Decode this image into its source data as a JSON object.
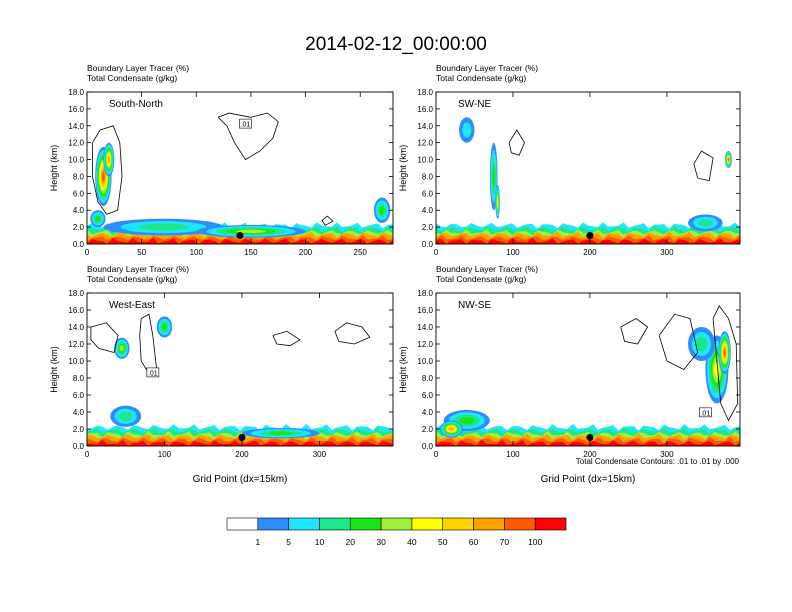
{
  "title": "2014-02-12_00:00:00",
  "colors": {
    "fill_levels": [
      "#ffffff",
      "#2e8cff",
      "#1ee6ff",
      "#1ee68c",
      "#19e619",
      "#a0f03c",
      "#ffff00",
      "#ffd200",
      "#ffa000",
      "#ff5a00",
      "#ff0000"
    ],
    "contour": "#000000",
    "marker": "#000000"
  },
  "colorbar": {
    "labels": [
      "1",
      "5",
      "10",
      "20",
      "30",
      "40",
      "50",
      "60",
      "70",
      "100"
    ]
  },
  "footnote": "Total Condensate Contours: .01 to .01 by .000",
  "chart_data": [
    {
      "type": "heatmap",
      "title": "South-North",
      "label1": "Boundary Layer Tracer   (%)",
      "label2": "Total Condensate   (g/kg)",
      "ylabel": "Height (km)",
      "xlabel": "",
      "xlim": [
        0,
        280
      ],
      "ylim": [
        0,
        18
      ],
      "xticks": [
        "0",
        "50",
        "100",
        "150",
        "200",
        "250"
      ],
      "xtick_values": [
        0,
        50,
        100,
        150,
        200,
        250
      ],
      "yticks": [
        "0.0",
        "2.0",
        "4.0",
        "6.0",
        "8.0",
        "10.0",
        "12.0",
        "14.0",
        "16.0",
        "18.0"
      ],
      "contour_label": ".01",
      "contour_label_pos": [
        145,
        14.2
      ],
      "marker": [
        140,
        1.0
      ],
      "blobs": [
        {
          "x": 15,
          "y": 8,
          "w": 15,
          "h": 7,
          "v": 70
        },
        {
          "x": 20,
          "y": 10,
          "w": 10,
          "h": 4,
          "v": 60
        },
        {
          "x": 70,
          "y": 2,
          "w": 110,
          "h": 2,
          "v": 10
        },
        {
          "x": 150,
          "y": 1.5,
          "w": 100,
          "h": 1.5,
          "v": 30
        },
        {
          "x": 270,
          "y": 4,
          "w": 15,
          "h": 3,
          "v": 20
        },
        {
          "x": 10,
          "y": 3,
          "w": 14,
          "h": 2,
          "v": 20
        }
      ],
      "contours": [
        [
          [
            120,
            15
          ],
          [
            130,
            15.5
          ],
          [
            150,
            15
          ],
          [
            165,
            15.5
          ],
          [
            175,
            14.5
          ],
          [
            170,
            12.5
          ],
          [
            158,
            11
          ],
          [
            145,
            10
          ],
          [
            135,
            12
          ],
          [
            128,
            14
          ],
          [
            120,
            15
          ]
        ],
        [
          [
            5,
            12
          ],
          [
            12,
            13.5
          ],
          [
            24,
            14
          ],
          [
            30,
            12
          ],
          [
            32,
            8
          ],
          [
            28,
            4
          ],
          [
            18,
            3.5
          ],
          [
            10,
            5
          ],
          [
            5,
            8
          ],
          [
            5,
            12
          ]
        ],
        [
          [
            215,
            2.8
          ],
          [
            220,
            3.3
          ],
          [
            225,
            2.7
          ],
          [
            218,
            2.2
          ],
          [
            215,
            2.8
          ]
        ]
      ]
    },
    {
      "type": "heatmap",
      "title": "SW-NE",
      "label1": "Boundary Layer Tracer   (%)",
      "label2": "Total Condensate   (g/kg)",
      "ylabel": "Height (km)",
      "xlabel": "",
      "xlim": [
        0,
        395
      ],
      "ylim": [
        0,
        18
      ],
      "xticks": [
        "0",
        "100",
        "200",
        "300"
      ],
      "xtick_values": [
        0,
        100,
        200,
        300
      ],
      "yticks": [
        "0.0",
        "2.0",
        "4.0",
        "6.0",
        "8.0",
        "10.0",
        "12.0",
        "14.0",
        "16.0",
        "18.0"
      ],
      "contour_label": "",
      "contour_label_pos": [
        0,
        0
      ],
      "marker": [
        200,
        1.0
      ],
      "blobs": [
        {
          "x": 75,
          "y": 8,
          "w": 10,
          "h": 8,
          "v": 20
        },
        {
          "x": 80,
          "y": 5,
          "w": 6,
          "h": 4,
          "v": 50
        },
        {
          "x": 40,
          "y": 13.5,
          "w": 20,
          "h": 3,
          "v": 5
        },
        {
          "x": 380,
          "y": 10,
          "w": 9,
          "h": 2,
          "v": 70
        },
        {
          "x": 350,
          "y": 2.5,
          "w": 45,
          "h": 2,
          "v": 10
        }
      ],
      "contours": [
        [
          [
            95,
            12
          ],
          [
            105,
            13.5
          ],
          [
            115,
            12
          ],
          [
            108,
            10.5
          ],
          [
            98,
            10.8
          ],
          [
            95,
            12
          ]
        ],
        [
          [
            335,
            9.5
          ],
          [
            345,
            11
          ],
          [
            360,
            10.2
          ],
          [
            355,
            7.5
          ],
          [
            340,
            7.8
          ],
          [
            335,
            9.5
          ]
        ]
      ]
    },
    {
      "type": "heatmap",
      "title": "West-East",
      "label1": "Boundary Layer Tracer   (%)",
      "label2": "Total Condensate   (g/kg)",
      "ylabel": "Height (km)",
      "xlabel": "Grid Point (dx=15km)",
      "xlim": [
        0,
        395
      ],
      "ylim": [
        0,
        18
      ],
      "xticks": [
        "0",
        "100",
        "200",
        "300"
      ],
      "xtick_values": [
        0,
        100,
        200,
        300
      ],
      "yticks": [
        "0.0",
        "2.0",
        "4.0",
        "6.0",
        "8.0",
        "10.0",
        "12.0",
        "14.0",
        "16.0",
        "18.0"
      ],
      "contour_label": ".01",
      "contour_label_pos": [
        85,
        8.6
      ],
      "marker": [
        200,
        1.0
      ],
      "blobs": [
        {
          "x": 45,
          "y": 11.5,
          "w": 20,
          "h": 2.5,
          "v": 30
        },
        {
          "x": 100,
          "y": 14,
          "w": 20,
          "h": 2.5,
          "v": 20
        },
        {
          "x": 50,
          "y": 3.5,
          "w": 40,
          "h": 2.5,
          "v": 10
        },
        {
          "x": 250,
          "y": 1.5,
          "w": 100,
          "h": 1.2,
          "v": 20
        }
      ],
      "contours": [
        [
          [
            5,
            14
          ],
          [
            25,
            14.5
          ],
          [
            40,
            13
          ],
          [
            35,
            11
          ],
          [
            15,
            11.5
          ],
          [
            5,
            12.5
          ],
          [
            5,
            14
          ]
        ],
        [
          [
            70,
            15
          ],
          [
            80,
            15.5
          ],
          [
            85,
            13
          ],
          [
            90,
            9
          ],
          [
            80,
            8.5
          ],
          [
            70,
            10
          ],
          [
            68,
            13
          ],
          [
            70,
            15
          ]
        ],
        [
          [
            320,
            13.5
          ],
          [
            335,
            14.5
          ],
          [
            355,
            14
          ],
          [
            365,
            12.8
          ],
          [
            345,
            12
          ],
          [
            325,
            12.3
          ],
          [
            320,
            13.5
          ]
        ],
        [
          [
            240,
            13
          ],
          [
            258,
            13.5
          ],
          [
            275,
            12.5
          ],
          [
            262,
            11.8
          ],
          [
            245,
            12
          ],
          [
            240,
            13
          ]
        ]
      ]
    },
    {
      "type": "heatmap",
      "title": "NW-SE",
      "label1": "Boundary Layer Tracer   (%)",
      "label2": "Total Condensate   (g/kg)",
      "ylabel": "Height (km)",
      "xlabel": "Grid Point (dx=15km)",
      "xlim": [
        0,
        395
      ],
      "ylim": [
        0,
        18
      ],
      "xticks": [
        "0",
        "100",
        "200",
        "300"
      ],
      "xtick_values": [
        0,
        100,
        200,
        300
      ],
      "yticks": [
        "0.0",
        "2.0",
        "4.0",
        "6.0",
        "8.0",
        "10.0",
        "12.0",
        "14.0",
        "16.0",
        "18.0"
      ],
      "contour_label": ".01",
      "contour_label_pos": [
        350,
        3.9
      ],
      "marker": [
        200,
        1.0
      ],
      "blobs": [
        {
          "x": 365,
          "y": 9,
          "w": 30,
          "h": 8,
          "v": 40
        },
        {
          "x": 375,
          "y": 11,
          "w": 16,
          "h": 5,
          "v": 70
        },
        {
          "x": 345,
          "y": 12,
          "w": 35,
          "h": 4,
          "v": 10
        },
        {
          "x": 40,
          "y": 3,
          "w": 60,
          "h": 2.5,
          "v": 20
        },
        {
          "x": 20,
          "y": 2,
          "w": 30,
          "h": 2,
          "v": 60
        }
      ],
      "contours": [
        [
          [
            240,
            14
          ],
          [
            260,
            15
          ],
          [
            275,
            14
          ],
          [
            262,
            12
          ],
          [
            245,
            12.3
          ],
          [
            240,
            14
          ]
        ],
        [
          [
            290,
            13
          ],
          [
            310,
            15.5
          ],
          [
            330,
            15
          ],
          [
            340,
            11
          ],
          [
            322,
            9
          ],
          [
            300,
            10
          ],
          [
            290,
            13
          ]
        ],
        [
          [
            360,
            15
          ],
          [
            368,
            16.5
          ],
          [
            380,
            15
          ],
          [
            390,
            12
          ],
          [
            392,
            5
          ],
          [
            380,
            3
          ],
          [
            370,
            5
          ],
          [
            365,
            10
          ],
          [
            360,
            15
          ]
        ]
      ]
    }
  ]
}
